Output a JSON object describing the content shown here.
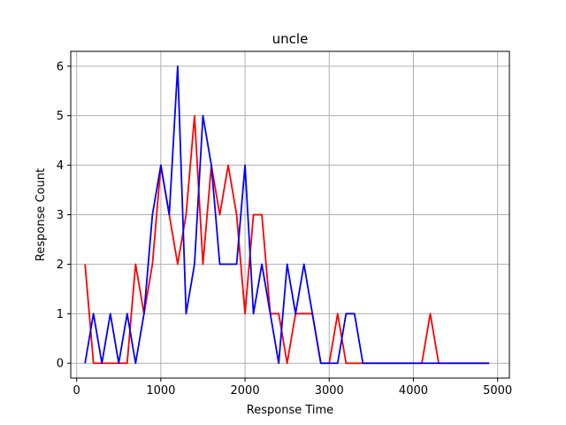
{
  "chart_data": {
    "type": "line",
    "title": "uncle",
    "xlabel": "Response Time",
    "ylabel": "Response Count",
    "xlim": [
      -70,
      5140
    ],
    "ylim": [
      -0.3,
      6.3
    ],
    "xticks": [
      0,
      1000,
      2000,
      3000,
      4000,
      5000
    ],
    "xtick_labels": [
      "0",
      "1000",
      "2000",
      "3000",
      "4000",
      "5000"
    ],
    "yticks": [
      0,
      1,
      2,
      3,
      4,
      5,
      6
    ],
    "ytick_labels": [
      "0",
      "1",
      "2",
      "3",
      "4",
      "5",
      "6"
    ],
    "grid": true,
    "legend": false,
    "x": [
      100,
      200,
      300,
      400,
      500,
      600,
      700,
      800,
      900,
      1000,
      1100,
      1200,
      1300,
      1400,
      1500,
      1600,
      1700,
      1800,
      1900,
      2000,
      2100,
      2200,
      2300,
      2400,
      2500,
      2600,
      2700,
      2800,
      2900,
      3000,
      3100,
      3200,
      3300,
      3400,
      3500,
      3600,
      3700,
      3800,
      3900,
      4000,
      4100,
      4200,
      4300,
      4400,
      4500,
      4600,
      4700,
      4800,
      4900
    ],
    "series": [
      {
        "color": "#ff0000",
        "values": [
          2,
          0,
          0,
          0,
          0,
          0,
          2,
          1,
          2,
          4,
          3,
          2,
          3,
          5,
          2,
          4,
          3,
          4,
          3,
          1,
          3,
          3,
          1,
          1,
          0,
          1,
          1,
          1,
          0,
          0,
          1,
          0,
          0,
          0,
          0,
          0,
          0,
          0,
          0,
          0,
          0,
          1,
          0,
          0,
          0,
          0,
          0,
          0,
          0
        ]
      },
      {
        "color": "#0000ff",
        "values": [
          0,
          1,
          0,
          1,
          0,
          1,
          0,
          1,
          3,
          4,
          3,
          6,
          1,
          2,
          5,
          4,
          2,
          2,
          2,
          4,
          1,
          2,
          1,
          0,
          2,
          1,
          2,
          1,
          0,
          0,
          0,
          1,
          1,
          0,
          0,
          0,
          0,
          0,
          0,
          0,
          0,
          0,
          0,
          0,
          0,
          0,
          0,
          0,
          0
        ]
      }
    ]
  }
}
